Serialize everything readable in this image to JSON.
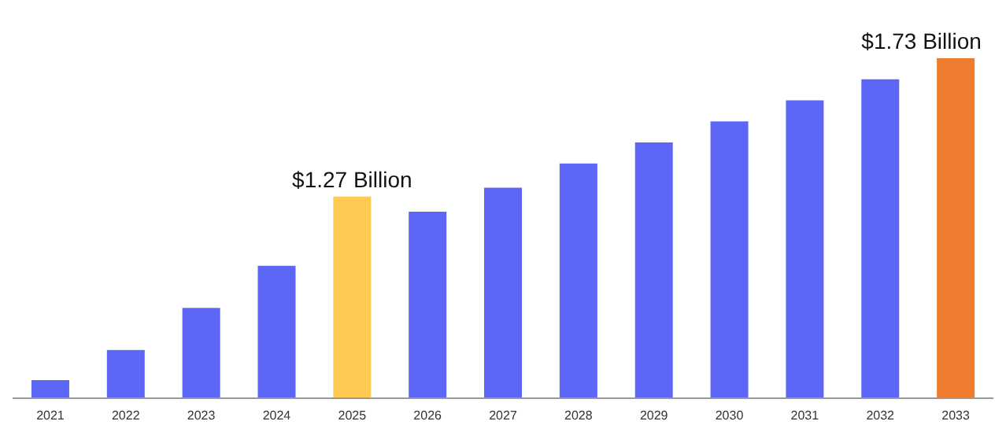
{
  "chart_data": {
    "type": "bar",
    "ylim": [
      0.6,
      1.73
    ],
    "categories": [
      "2021",
      "2022",
      "2023",
      "2024",
      "2025",
      "2026",
      "2027",
      "2028",
      "2029",
      "2030",
      "2031",
      "2032",
      "2033"
    ],
    "values": [
      0.66,
      0.76,
      0.9,
      1.04,
      1.27,
      1.22,
      1.3,
      1.38,
      1.45,
      1.52,
      1.59,
      1.66,
      1.73
    ],
    "colors": [
      "#5c67f8",
      "#5c67f8",
      "#5c67f8",
      "#5c67f8",
      "#ffca52",
      "#5c67f8",
      "#5c67f8",
      "#5c67f8",
      "#5c67f8",
      "#5c67f8",
      "#5c67f8",
      "#5c67f8",
      "#ef7b2f"
    ],
    "value_labels": [
      null,
      null,
      null,
      null,
      "$1.27 Billion",
      null,
      null,
      null,
      null,
      null,
      null,
      null,
      "$1.73 Billion"
    ],
    "grid": false,
    "legend": false,
    "tick_labels": "x"
  }
}
